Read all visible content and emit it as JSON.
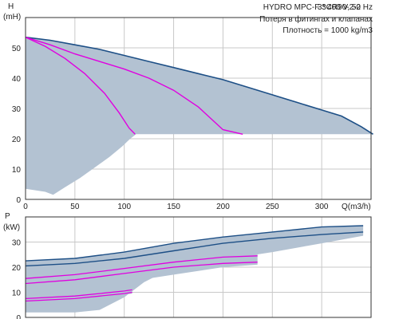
{
  "colors": {
    "band": "#b3c2d2",
    "envelope": "#1d4f86",
    "curve": "#e000e0",
    "grid": "#c8c8c8",
    "frame": "#333333",
    "background": "#ffffff"
  },
  "chart_data": [
    {
      "type": "line",
      "ylabel_line1": "H",
      "ylabel_line2": "(mH)",
      "xlabel": "Q(m3/h)",
      "xlim": [
        0,
        350
      ],
      "ylim": [
        0,
        60
      ],
      "xticks": [
        "0",
        "50",
        "100",
        "150",
        "200",
        "250",
        "300"
      ],
      "yticks": [
        "0",
        "10",
        "20",
        "30",
        "40",
        "50"
      ],
      "grid": true,
      "info": {
        "model": "HYDRO MPC-F 3CR90-2-2",
        "power": "3* 400 V, 50 Hz",
        "note1": "Потеря в фитингах и клапанах",
        "note2": "Плотность = 1000 kg/m3"
      },
      "operating_area": {
        "upper": [
          [
            0,
            53.5
          ],
          [
            25,
            52.5
          ],
          [
            50,
            51
          ],
          [
            75,
            49.5
          ],
          [
            100,
            47.5
          ],
          [
            125,
            45.5
          ],
          [
            150,
            43.5
          ],
          [
            175,
            41.5
          ],
          [
            200,
            39.5
          ],
          [
            225,
            37
          ],
          [
            250,
            34.5
          ],
          [
            275,
            32
          ],
          [
            300,
            29.5
          ],
          [
            320,
            27.5
          ],
          [
            340,
            24
          ],
          [
            352,
            21.5
          ]
        ],
        "floor_y": 21.5,
        "floor_from_x": 112,
        "lower": [
          [
            112,
            21.5
          ],
          [
            106,
            20
          ],
          [
            98,
            17.5
          ],
          [
            85,
            14
          ],
          [
            70,
            10.5
          ],
          [
            55,
            7
          ],
          [
            40,
            4
          ],
          [
            28,
            1.5
          ],
          [
            20,
            2.5
          ],
          [
            10,
            3
          ],
          [
            0,
            3.5
          ]
        ]
      },
      "series": [
        {
          "values": [
            [
              0,
              53.5
            ],
            [
              25,
              52.5
            ],
            [
              50,
              51
            ],
            [
              75,
              49.5
            ],
            [
              100,
              47.5
            ],
            [
              125,
              45.5
            ],
            [
              150,
              43.5
            ],
            [
              175,
              41.5
            ],
            [
              200,
              39.5
            ],
            [
              225,
              37
            ],
            [
              250,
              34.5
            ],
            [
              275,
              32
            ],
            [
              300,
              29.5
            ],
            [
              320,
              27.5
            ],
            [
              340,
              24
            ],
            [
              352,
              21.5
            ]
          ]
        },
        {
          "values": [
            [
              0,
              53.5
            ],
            [
              25,
              51
            ],
            [
              50,
              48
            ],
            [
              75,
              45.5
            ],
            [
              100,
              43
            ],
            [
              125,
              40
            ],
            [
              150,
              36
            ],
            [
              175,
              30.5
            ],
            [
              200,
              23
            ],
            [
              220,
              21.5
            ]
          ]
        },
        {
          "values": [
            [
              0,
              53.5
            ],
            [
              20,
              50.5
            ],
            [
              40,
              46.5
            ],
            [
              60,
              41.5
            ],
            [
              80,
              35
            ],
            [
              95,
              28.5
            ],
            [
              105,
              23.5
            ],
            [
              111,
              21.5
            ]
          ]
        }
      ]
    },
    {
      "type": "area",
      "ylabel_line1": "P",
      "ylabel_line2": "(kW)",
      "xlim": [
        0,
        350
      ],
      "ylim": [
        0,
        40
      ],
      "yticks": [
        "0",
        "10",
        "20",
        "30"
      ],
      "grid": true,
      "band_1": {
        "upper": [
          [
            0,
            22.5
          ],
          [
            50,
            23.5
          ],
          [
            100,
            26
          ],
          [
            150,
            29.5
          ],
          [
            200,
            32
          ],
          [
            250,
            34
          ],
          [
            300,
            36
          ],
          [
            342,
            36.5
          ]
        ],
        "lower": [
          [
            342,
            32.5
          ],
          [
            300,
            29.5
          ],
          [
            250,
            26
          ],
          [
            200,
            23
          ],
          [
            150,
            20
          ],
          [
            120,
            14
          ],
          [
            100,
            8
          ],
          [
            75,
            3
          ],
          [
            50,
            2
          ],
          [
            0,
            2
          ]
        ]
      },
      "band_2": {
        "upper": [
          [
            0,
            16
          ],
          [
            50,
            17.5
          ],
          [
            100,
            20
          ],
          [
            150,
            22.5
          ],
          [
            200,
            24
          ],
          [
            235,
            25.5
          ]
        ],
        "lower": [
          [
            235,
            21
          ],
          [
            200,
            20
          ],
          [
            150,
            17
          ],
          [
            100,
            14
          ],
          [
            50,
            11
          ],
          [
            0,
            10
          ]
        ]
      },
      "band_3": {
        "upper": [
          [
            0,
            8
          ],
          [
            50,
            9
          ],
          [
            100,
            11
          ],
          [
            108,
            12
          ]
        ],
        "lower": [
          [
            108,
            9.5
          ],
          [
            100,
            9
          ],
          [
            50,
            6
          ],
          [
            0,
            5
          ]
        ]
      },
      "series": [
        {
          "values": [
            [
              0,
              22.5
            ],
            [
              50,
              23.5
            ],
            [
              100,
              26
            ],
            [
              150,
              29.5
            ],
            [
              200,
              32
            ],
            [
              250,
              34
            ],
            [
              300,
              36
            ],
            [
              342,
              36.5
            ]
          ]
        },
        {
          "values": [
            [
              0,
              20.5
            ],
            [
              50,
              21.5
            ],
            [
              100,
              23.5
            ],
            [
              150,
              26.5
            ],
            [
              200,
              29.5
            ],
            [
              250,
              31.5
            ],
            [
              300,
              33
            ],
            [
              342,
              34
            ]
          ]
        },
        {
          "values": [
            [
              0,
              15.5
            ],
            [
              50,
              17
            ],
            [
              100,
              19.5
            ],
            [
              150,
              22
            ],
            [
              200,
              24
            ],
            [
              235,
              24.5
            ]
          ]
        },
        {
          "values": [
            [
              0,
              13.5
            ],
            [
              50,
              15
            ],
            [
              100,
              17.5
            ],
            [
              150,
              20
            ],
            [
              200,
              21.5
            ],
            [
              235,
              22
            ]
          ]
        },
        {
          "values": [
            [
              0,
              7.5
            ],
            [
              50,
              8.5
            ],
            [
              100,
              10.5
            ],
            [
              108,
              11
            ]
          ]
        },
        {
          "values": [
            [
              0,
              6.5
            ],
            [
              50,
              7.5
            ],
            [
              100,
              9.5
            ],
            [
              108,
              10
            ]
          ]
        }
      ]
    }
  ]
}
